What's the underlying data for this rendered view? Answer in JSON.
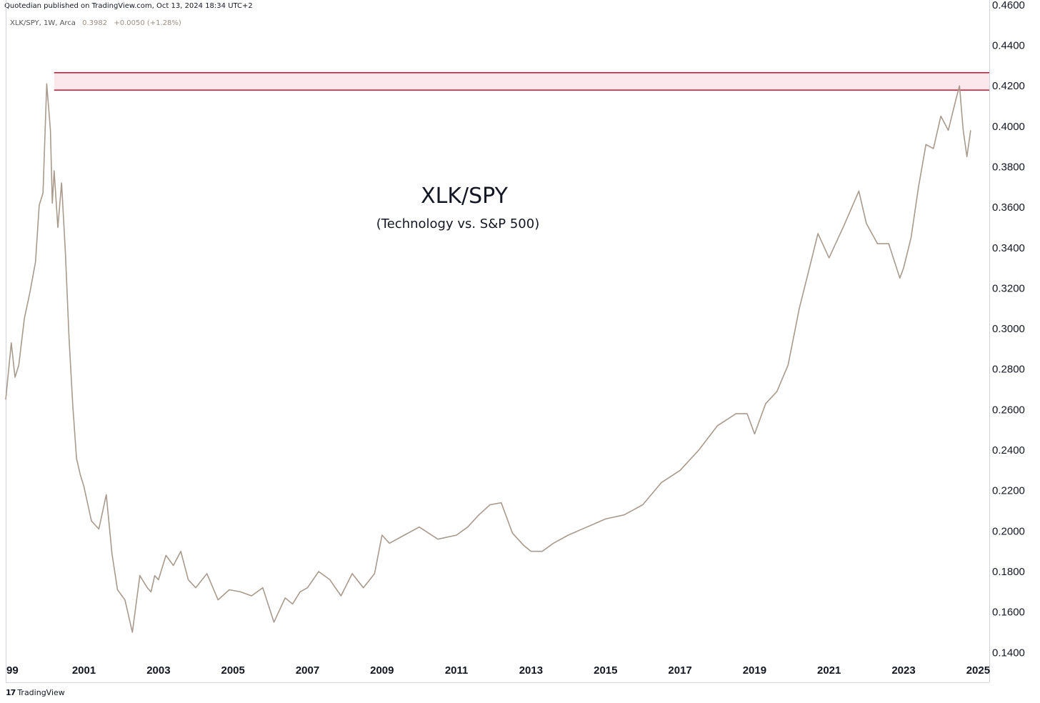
{
  "header": {
    "publisher_text": "Quotedian published on TradingView.com, Oct 13, 2024 18:34 UTC+2",
    "symbol": "XLK/SPY, 1W, Arca",
    "last_value": "0.3982",
    "change": "+0.0050 (+1.28%)"
  },
  "footer": {
    "logo_mark": "17",
    "logo_text": "TradingView"
  },
  "colors": {
    "series": "#a89a8c",
    "band_line": "#c8102e",
    "band_fill": "#fbe8ec",
    "axis": "#d1d4dc"
  },
  "chart_data": {
    "type": "line",
    "title": "XLK/SPY",
    "subtitle": "(Technology vs. S&P 500)",
    "x_tick_labels": [
      "99",
      "2001",
      "2003",
      "2005",
      "2007",
      "2009",
      "2011",
      "2013",
      "2015",
      "2017",
      "2019",
      "2021",
      "2023",
      "2025"
    ],
    "y_tick_labels": [
      "0.4600",
      "0.4400",
      "0.4200",
      "0.4000",
      "0.3800",
      "0.3600",
      "0.3400",
      "0.3200",
      "0.3000",
      "0.2800",
      "0.2600",
      "0.2400",
      "0.2200",
      "0.2000",
      "0.1800",
      "0.1600",
      "0.1400"
    ],
    "x_range": [
      1998.9,
      2025.3
    ],
    "y_range": [
      0.1253,
      0.4624
    ],
    "grid": false,
    "resistance_band": {
      "upper": 0.4265,
      "lower": 0.4179,
      "x_start": 2000.2
    },
    "series": [
      {
        "x": [
          1998.9,
          1999.05,
          1999.15,
          1999.25,
          1999.4,
          1999.55,
          1999.7,
          1999.8,
          1999.9,
          2000.0,
          2000.1,
          2000.15,
          2000.2,
          2000.3,
          2000.4,
          2000.5,
          2000.6,
          2000.7,
          2000.8,
          2000.9,
          2001.0,
          2001.2,
          2001.4,
          2001.6,
          2001.75,
          2001.9,
          2002.1,
          2002.3,
          2002.5,
          2002.7,
          2002.8,
          2002.9,
          2003.0,
          2003.2,
          2003.4,
          2003.6,
          2003.8,
          2004.0,
          2004.3,
          2004.6,
          2004.9,
          2005.2,
          2005.5,
          2005.8,
          2006.1,
          2006.4,
          2006.6,
          2006.8,
          2007.0,
          2007.3,
          2007.6,
          2007.9,
          2008.2,
          2008.5,
          2008.8,
          2009.0,
          2009.2,
          2009.6,
          2010.0,
          2010.5,
          2011.0,
          2011.3,
          2011.6,
          2011.9,
          2012.2,
          2012.5,
          2012.8,
          2013.0,
          2013.3,
          2013.6,
          2014.0,
          2014.5,
          2015.0,
          2015.5,
          2016.0,
          2016.5,
          2017.0,
          2017.5,
          2018.0,
          2018.5,
          2018.8,
          2019.0,
          2019.3,
          2019.6,
          2019.9,
          2020.2,
          2020.5,
          2020.7,
          2021.0,
          2021.4,
          2021.8,
          2022.0,
          2022.3,
          2022.6,
          2022.9,
          2023.0,
          2023.2,
          2023.4,
          2023.6,
          2023.8,
          2024.0,
          2024.2,
          2024.4,
          2024.5,
          2024.6,
          2024.7,
          2024.8
        ],
        "y": [
          0.265,
          0.293,
          0.276,
          0.282,
          0.305,
          0.318,
          0.333,
          0.361,
          0.367,
          0.421,
          0.398,
          0.362,
          0.378,
          0.35,
          0.372,
          0.338,
          0.295,
          0.262,
          0.236,
          0.228,
          0.222,
          0.205,
          0.201,
          0.218,
          0.189,
          0.171,
          0.166,
          0.15,
          0.178,
          0.172,
          0.17,
          0.178,
          0.176,
          0.188,
          0.183,
          0.19,
          0.176,
          0.172,
          0.179,
          0.166,
          0.171,
          0.17,
          0.168,
          0.172,
          0.155,
          0.167,
          0.164,
          0.17,
          0.172,
          0.18,
          0.176,
          0.168,
          0.179,
          0.172,
          0.179,
          0.198,
          0.194,
          0.198,
          0.202,
          0.196,
          0.198,
          0.202,
          0.208,
          0.213,
          0.214,
          0.199,
          0.193,
          0.19,
          0.19,
          0.194,
          0.198,
          0.202,
          0.206,
          0.208,
          0.213,
          0.224,
          0.23,
          0.24,
          0.252,
          0.258,
          0.258,
          0.248,
          0.263,
          0.269,
          0.282,
          0.31,
          0.332,
          0.347,
          0.335,
          0.351,
          0.368,
          0.352,
          0.342,
          0.342,
          0.325,
          0.33,
          0.345,
          0.37,
          0.391,
          0.389,
          0.405,
          0.398,
          0.413,
          0.42,
          0.398,
          0.385,
          0.398
        ]
      }
    ]
  }
}
